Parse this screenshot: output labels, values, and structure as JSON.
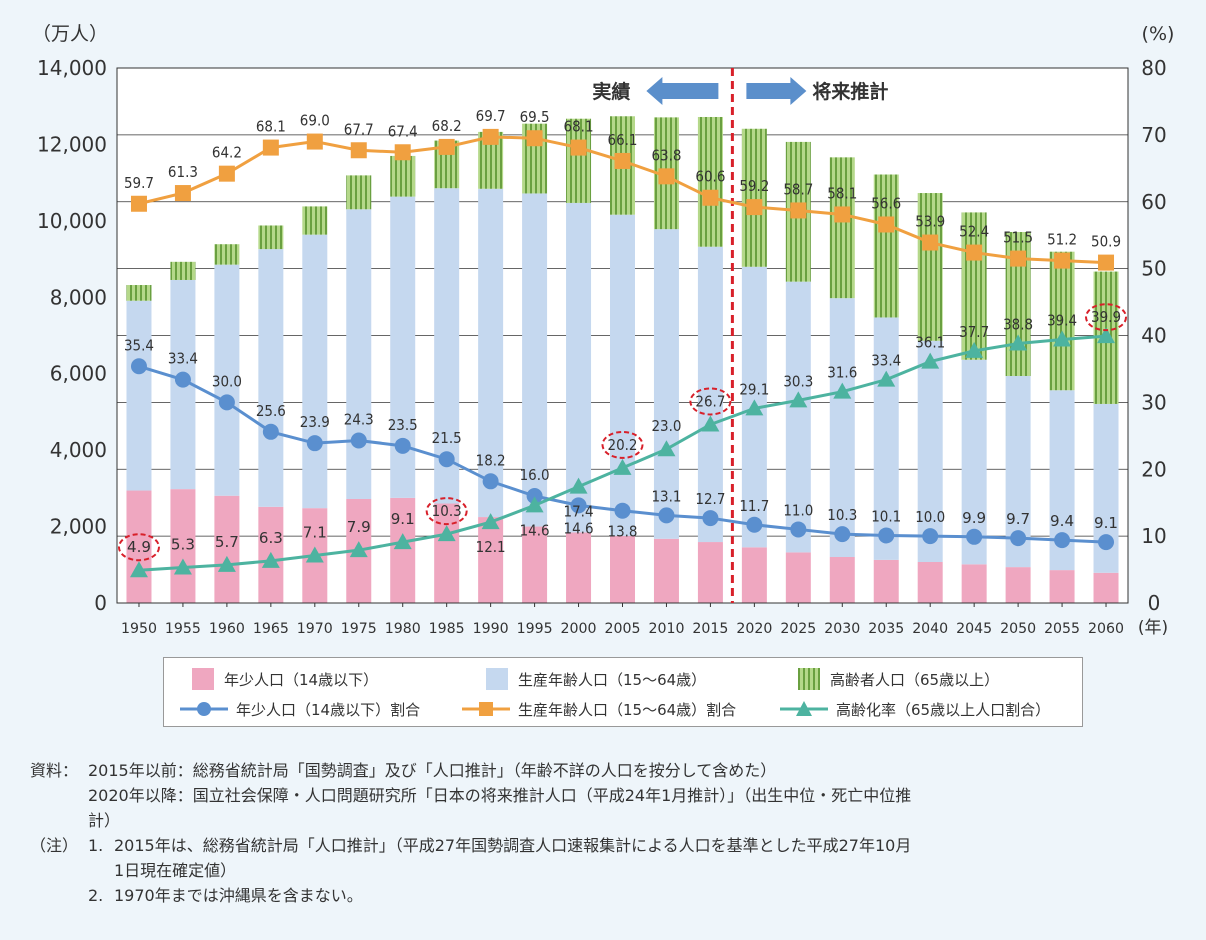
{
  "chart_data": {
    "type": "bar+line",
    "unit_left": "（万人）",
    "unit_right": "(%)",
    "year_unit": "(年)",
    "left_axis": {
      "min": 0,
      "max": 14000,
      "ticks": [
        "0",
        "2,000",
        "4,000",
        "6,000",
        "8,000",
        "10,000",
        "12,000",
        "14,000"
      ]
    },
    "right_axis": {
      "min": 0,
      "max": 80,
      "ticks": [
        "0",
        "10",
        "20",
        "30",
        "40",
        "50",
        "60",
        "70",
        "80"
      ]
    },
    "categories": [
      "1950",
      "1955",
      "1960",
      "1965",
      "1970",
      "1975",
      "1980",
      "1985",
      "1990",
      "1995",
      "2000",
      "2005",
      "2010",
      "2015",
      "2020",
      "2025",
      "2030",
      "2035",
      "2040",
      "2045",
      "2050",
      "2055",
      "2060"
    ],
    "bar_series": [
      {
        "name": "年少人口（14歳以下）",
        "color": "#efa7c0",
        "values": [
          2943,
          2980,
          2807,
          2517,
          2482,
          2722,
          2751,
          2603,
          2249,
          2001,
          1847,
          1752,
          1680,
          1595,
          1457,
          1324,
          1204,
          1129,
          1073,
          1012,
          939,
          861,
          791
        ]
      },
      {
        "name": "生産年齢人口（15～64歳）",
        "color": "#c5d8ef",
        "values": [
          4966,
          5473,
          6047,
          6744,
          7157,
          7581,
          7883,
          8251,
          8590,
          8716,
          8622,
          8409,
          8103,
          7728,
          7341,
          7085,
          6773,
          6343,
          5787,
          5353,
          5001,
          4706,
          4418
        ]
      },
      {
        "name": "高齢者人口（65歳以上）",
        "color": "#b5d88a",
        "values": [
          412,
          475,
          535,
          618,
          739,
          887,
          1065,
          1247,
          1489,
          1826,
          2204,
          2576,
          2925,
          3395,
          3612,
          3657,
          3685,
          3741,
          3868,
          3856,
          3768,
          3626,
          3464
        ]
      }
    ],
    "line_series": [
      {
        "name": "年少人口（14歳以下）割合",
        "color": "#5a8fcf",
        "marker": "circle",
        "values": [
          35.4,
          33.4,
          30.0,
          25.6,
          23.9,
          24.3,
          23.5,
          21.5,
          18.2,
          16.0,
          14.6,
          13.8,
          13.1,
          12.7,
          11.7,
          11.0,
          10.3,
          10.1,
          10.0,
          9.9,
          9.7,
          9.4,
          9.1
        ],
        "labels": [
          "35.4",
          "33.4",
          "30.0",
          "25.6",
          "23.9",
          "24.3",
          "23.5",
          "21.5",
          "18.2",
          "16.0",
          "14.6",
          "13.8",
          "13.1",
          "12.7",
          "11.7",
          "11.0",
          "10.3",
          "10.1",
          "10.0",
          "9.9",
          "9.7",
          "9.4",
          "9.1"
        ]
      },
      {
        "name": "生産年齢人口（15～64歳）割合",
        "color": "#f0a040",
        "marker": "square",
        "values": [
          59.7,
          61.3,
          64.2,
          68.1,
          69.0,
          67.7,
          67.4,
          68.2,
          69.7,
          69.5,
          68.1,
          66.1,
          63.8,
          60.6,
          59.2,
          58.7,
          58.1,
          56.6,
          53.9,
          52.4,
          51.5,
          51.2,
          50.9
        ],
        "labels": [
          "59.7",
          "61.3",
          "64.2",
          "68.1",
          "69.0",
          "67.7",
          "67.4",
          "68.2",
          "69.7",
          "69.5",
          "68.1",
          "66.1",
          "63.8",
          "60.6",
          "59.2",
          "58.7",
          "58.1",
          "56.6",
          "53.9",
          "52.4",
          "51.5",
          "51.2",
          "50.9"
        ]
      },
      {
        "name": "高齢化率（65歳以上人口割合）",
        "color": "#4db3a0",
        "marker": "triangle",
        "values": [
          4.9,
          5.3,
          5.7,
          6.3,
          7.1,
          7.9,
          9.1,
          10.3,
          12.1,
          14.6,
          17.4,
          20.2,
          23.0,
          26.7,
          29.1,
          30.3,
          31.6,
          33.4,
          36.1,
          37.7,
          38.8,
          39.4,
          39.9
        ],
        "labels": [
          "4.9",
          "5.3",
          "5.7",
          "6.3",
          "7.1",
          "7.9",
          "9.1",
          "10.3",
          "12.1",
          "14.6",
          "17.4",
          "20.2",
          "23.0",
          "26.7",
          "29.1",
          "30.3",
          "31.6",
          "33.4",
          "36.1",
          "37.7",
          "38.8",
          "39.4",
          "39.9"
        ]
      }
    ],
    "highlighted": [
      "1950",
      "1985",
      "2005",
      "2015",
      "2060"
    ],
    "divider_after": "2015",
    "annotation_left": "実績",
    "annotation_right": "将来推計"
  },
  "legend": [
    "年少人口（14歳以下）",
    "生産年齢人口（15～64歳）",
    "高齢者人口（65歳以上）",
    "年少人口（14歳以下）割合",
    "生産年齢人口（15～64歳）割合",
    "高齢化率（65歳以上人口割合）"
  ],
  "notes": {
    "source_label": "資料：",
    "source_line1": "2015年以前：総務省統計局「国勢調査」及び「人口推計」（年齢不詳の人口を按分して含めた）",
    "source_line2": "2020年以降：国立社会保障・人口問題研究所「日本の将来推計人口（平成24年1月推計）」（出生中位・死亡中位推",
    "source_line3": "計）",
    "note_label": "（注）",
    "note1_num": "1.",
    "note1_line1": "2015年は、総務省統計局「人口推計」（平成27年国勢調査人口速報集計による人口を基準とした平成27年10月",
    "note1_line2": "1日現在確定値）",
    "note2_num": "2.",
    "note2_line1": "1970年までは沖縄県を含まない。"
  }
}
